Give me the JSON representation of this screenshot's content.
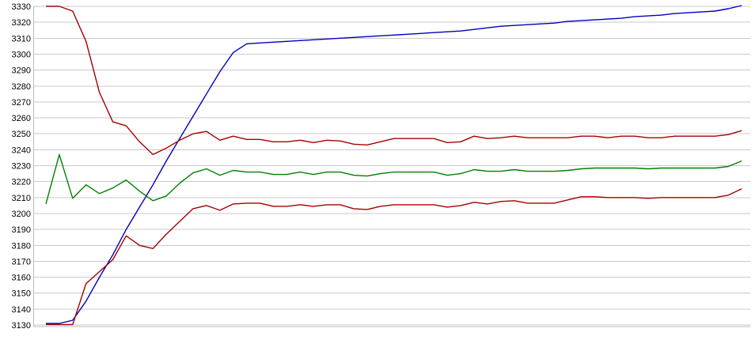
{
  "chart": {
    "background_color": "#ffffff",
    "grid_color": "#c9c9c9",
    "axis_color": "#bdbdbd",
    "tick_label_color": "#000000"
  },
  "chart_data": {
    "type": "line",
    "title": "",
    "xlabel": "",
    "ylabel": "",
    "ylim": [
      3130,
      3330
    ],
    "ytick_interval": 10,
    "ytick_labels": [
      "3330",
      "3320",
      "3310",
      "3300",
      "3290",
      "3280",
      "3270",
      "3260",
      "3250",
      "3240",
      "3230",
      "3220",
      "3210",
      "3200",
      "3190",
      "3180",
      "3170",
      "3160",
      "3150",
      "3140",
      "3130"
    ],
    "x_axis_labels_visible": false,
    "grid": true,
    "legend_position": "none",
    "n_points": 53,
    "series": [
      {
        "name": "blue-line",
        "color": "#0000bb",
        "values": [
          3131,
          3131,
          3133,
          3145,
          3160,
          3174,
          3190,
          3204,
          3218,
          3233,
          3247,
          3261,
          3275,
          3289,
          3301,
          3306.5,
          3307,
          3307.5,
          3308,
          3308.5,
          3309,
          3309.5,
          3310,
          3310.5,
          3311,
          3311.5,
          3312,
          3312.5,
          3313,
          3313.5,
          3314,
          3314.5,
          3315.5,
          3316.5,
          3317.5,
          3318,
          3318.5,
          3319,
          3319.5,
          3320.5,
          3321,
          3321.5,
          3322,
          3322.5,
          3323.5,
          3324,
          3324.5,
          3325.5,
          3326,
          3326.5,
          3327,
          3328.5,
          3330.5
        ]
      },
      {
        "name": "upper-red-line",
        "color": "#a50000",
        "values": [
          3330,
          3330,
          3327,
          3308,
          3276,
          3257.5,
          3255,
          3245,
          3237,
          3241,
          3246,
          3250,
          3251.5,
          3246,
          3248.5,
          3246.5,
          3246.5,
          3245,
          3245,
          3246,
          3244.5,
          3246,
          3245.5,
          3243.5,
          3243,
          3245,
          3247,
          3247,
          3247,
          3247,
          3244.5,
          3245,
          3248.5,
          3247,
          3247.5,
          3248.5,
          3247.5,
          3247.5,
          3247.5,
          3247.5,
          3248.5,
          3248.5,
          3247.5,
          3248.5,
          3248.5,
          3247.5,
          3247.5,
          3248.5,
          3248.5,
          3248.5,
          3248.5,
          3249.5,
          3252
        ]
      },
      {
        "name": "green-line",
        "color": "#008000",
        "values": [
          3206,
          3237,
          3209.5,
          3218,
          3212.5,
          3216,
          3221,
          3214,
          3208,
          3211,
          3219,
          3225.5,
          3228,
          3224,
          3227,
          3226,
          3226,
          3224.5,
          3224.5,
          3226,
          3224.5,
          3226,
          3226,
          3224,
          3223.5,
          3225,
          3226,
          3226,
          3226,
          3226,
          3224,
          3225,
          3227.5,
          3226.5,
          3226.5,
          3227.5,
          3226.5,
          3226.5,
          3226.5,
          3227,
          3228,
          3228.5,
          3228.5,
          3228.5,
          3228.5,
          3228,
          3228.5,
          3228.5,
          3228.5,
          3228.5,
          3228.5,
          3229.5,
          3233
        ]
      },
      {
        "name": "lower-red-line",
        "color": "#a50000",
        "values": [
          3130.3,
          3130.3,
          3130.3,
          3156,
          3163.5,
          3171,
          3186,
          3180,
          3178,
          3187,
          3195,
          3203,
          3205,
          3202,
          3206,
          3206.5,
          3206.5,
          3204.5,
          3204.5,
          3205.5,
          3204.5,
          3205.5,
          3205.5,
          3203,
          3202.5,
          3204.5,
          3205.5,
          3205.5,
          3205.5,
          3205.5,
          3204,
          3205,
          3207,
          3206,
          3207.5,
          3208,
          3206.5,
          3206.5,
          3206.5,
          3208.5,
          3210.5,
          3210.5,
          3210,
          3210,
          3210,
          3209.5,
          3210,
          3210,
          3210,
          3210,
          3210,
          3211.5,
          3215.5
        ]
      }
    ]
  }
}
